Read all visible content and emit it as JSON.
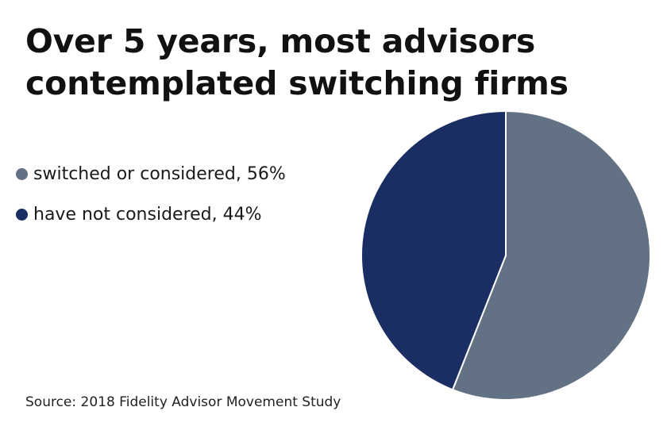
{
  "title_lines": [
    "Over 5 years, most advisors",
    "contemplated switching firms"
  ],
  "source": "Source: 2018 Fidelity Advisor Movement Study",
  "chart_data": {
    "type": "pie",
    "title": "Over 5 years, most advisors contemplated switching firms",
    "legend_position": "left",
    "slices": [
      {
        "label": "switched or considered, 56%",
        "value": 56,
        "color": "#627184"
      },
      {
        "label": "have not considered, 44%",
        "value": 44,
        "color": "#1a2e63"
      }
    ],
    "start_angle_deg": 0,
    "direction": "clockwise",
    "slice_separator_color": "#ffffff"
  }
}
